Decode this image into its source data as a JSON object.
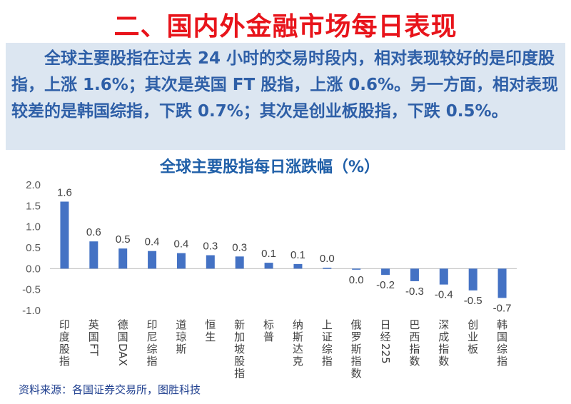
{
  "page": {
    "title": "二、国内外金融市场每日表现",
    "summary": "全球主要股指在过去 24 小时的交易时段内，相对表现较好的是印度股指，上涨 1.6%；其次是英国 FT 股指，上涨 0.6%。另一方面，相对表现较差的是韩国综指，下跌 0.7%；其次是创业板股指，下跌 0.5%。",
    "source": "资料来源：各国证券交易所，图胜科技"
  },
  "colors": {
    "title": "#e8141b",
    "bar": "#4472c4",
    "summary_bg": "#dce6f1",
    "summary_text": "#2e5fa7"
  },
  "chart_data": {
    "type": "bar",
    "title": "全球主要股指每日涨跌幅（%）",
    "categories": [
      "印度股指",
      "英国FT",
      "德国DAX",
      "印尼综指",
      "道琼斯",
      "恒生",
      "新加坡股指",
      "标普",
      "纳斯达克",
      "上证综指",
      "俄罗斯指数",
      "日经225",
      "巴西指数",
      "深成指数",
      "创业板",
      "韩国综指"
    ],
    "values": [
      1.6,
      0.65,
      0.48,
      0.42,
      0.37,
      0.32,
      0.29,
      0.14,
      0.11,
      0.02,
      -0.02,
      -0.15,
      -0.3,
      -0.38,
      -0.52,
      -0.7
    ],
    "data_labels": [
      "1.6",
      "0.6",
      "0.5",
      "0.4",
      "0.4",
      "0.3",
      "0.3",
      "0.1",
      "0.1",
      "0.0",
      "0.0",
      "-0.2",
      "-0.3",
      "-0.4",
      "-0.5",
      "-0.7"
    ],
    "yticks": [
      "2.0",
      "1.5",
      "1.0",
      "0.5",
      "0.0",
      "-0.5",
      "-1.0"
    ],
    "ylim": [
      -1.0,
      2.0
    ],
    "grid": false,
    "legend": "none"
  }
}
